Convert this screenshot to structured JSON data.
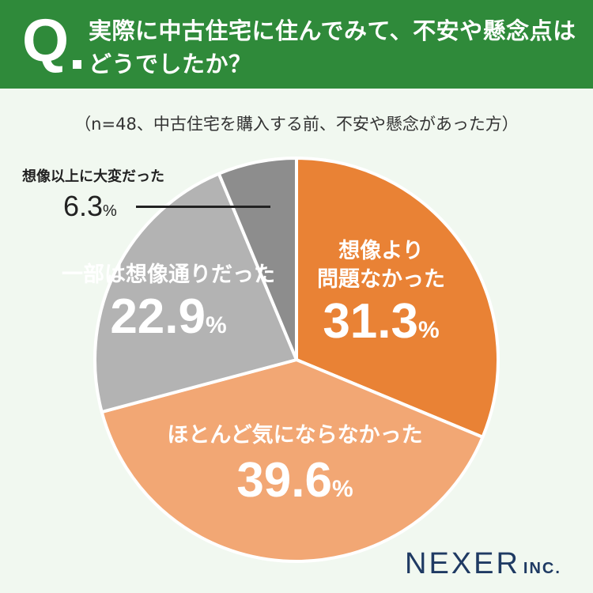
{
  "header": {
    "q_mark": "Q",
    "question_line1": "実際に中古住宅に住んでみて、不安や懸念点は",
    "question_line2": "どうでしたか？"
  },
  "note": "（n=48、中古住宅を購入する前、不安や懸念があった方）",
  "colors": {
    "header_bg": "#2f8a3a",
    "background": "#f1f8f0",
    "slice_1": "#e98235",
    "slice_2": "#f2a774",
    "slice_3": "#b3b3b3",
    "slice_4": "#8d8d8d",
    "brand": "#1f3a63"
  },
  "chart_data": {
    "type": "pie",
    "title": "",
    "start": "12 o'clock",
    "direction": "clockwise",
    "slices": [
      {
        "label_lines": [
          "想像より",
          "問題なかった"
        ],
        "value": 31.3,
        "value_text": "31.3",
        "unit": "%",
        "color": "#e98235"
      },
      {
        "label_lines": [
          "ほとんど気にならなかった"
        ],
        "value": 39.6,
        "value_text": "39.6",
        "unit": "%",
        "color": "#f2a774"
      },
      {
        "label_lines": [
          "一部は想像通りだった"
        ],
        "value": 22.9,
        "value_text": "22.9",
        "unit": "%",
        "color": "#b3b3b3"
      },
      {
        "label_lines": [
          "想像以上に大変だった"
        ],
        "value": 6.3,
        "value_text": "6.3",
        "unit": "%",
        "color": "#8d8d8d"
      }
    ]
  },
  "brand": {
    "name": "NEXER",
    "suffix": "INC."
  }
}
